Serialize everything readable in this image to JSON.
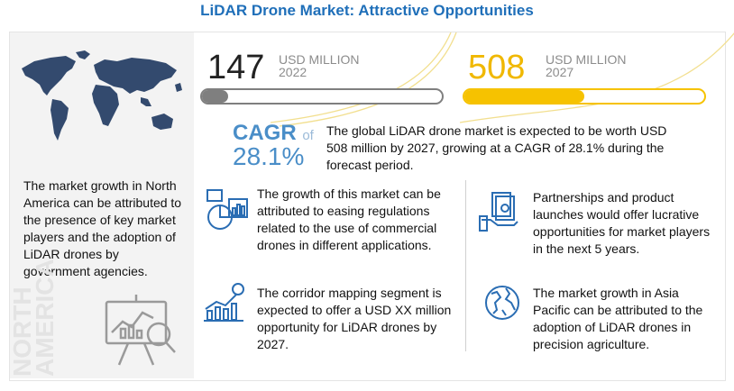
{
  "title": "LiDAR Drone Market: Attractive Opportunities",
  "market": {
    "start": {
      "value": "147",
      "unit": "USD MILLION",
      "year": "2022",
      "fill_fraction": 0.11
    },
    "end": {
      "value": "508",
      "unit": "USD MILLION",
      "year": "2027",
      "fill_fraction": 0.5
    }
  },
  "cagr": {
    "label": "CAGR",
    "of": "of",
    "value": "28.1%"
  },
  "summary": "The global LiDAR drone market is expected to be worth USD 508 million by 2027, growing at a CAGR of 28.1% during the forecast period.",
  "left_panel": {
    "text": "The market growth in North America can be attributed to the presence of key market players and the adoption of LiDAR drones by government agencies.",
    "region_line1": "NORTH",
    "region_line2": "AMERICA"
  },
  "insights": [
    {
      "icon": "analytics-icon",
      "text": "The growth of this market can be attributed to easing regulations related to the use of commercial drones in different applications."
    },
    {
      "icon": "money-hand-icon",
      "text": "Partnerships and product launches would offer lucrative opportunities for market players in the next 5 years."
    },
    {
      "icon": "growth-chart-icon",
      "text": "The corridor mapping segment is expected to offer a USD XX million opportunity for LiDAR drones by 2027."
    },
    {
      "icon": "globe-icon",
      "text": "The market growth in Asia Pacific can be attributed to the adoption of LiDAR drones in precision agriculture."
    }
  ],
  "colors": {
    "title": "#1f6fb9",
    "accent_yellow": "#f6c200",
    "cagr_blue": "#4a8ec8",
    "bar_gray": "#7f7f7f",
    "icon_blue": "#2a6db3"
  }
}
